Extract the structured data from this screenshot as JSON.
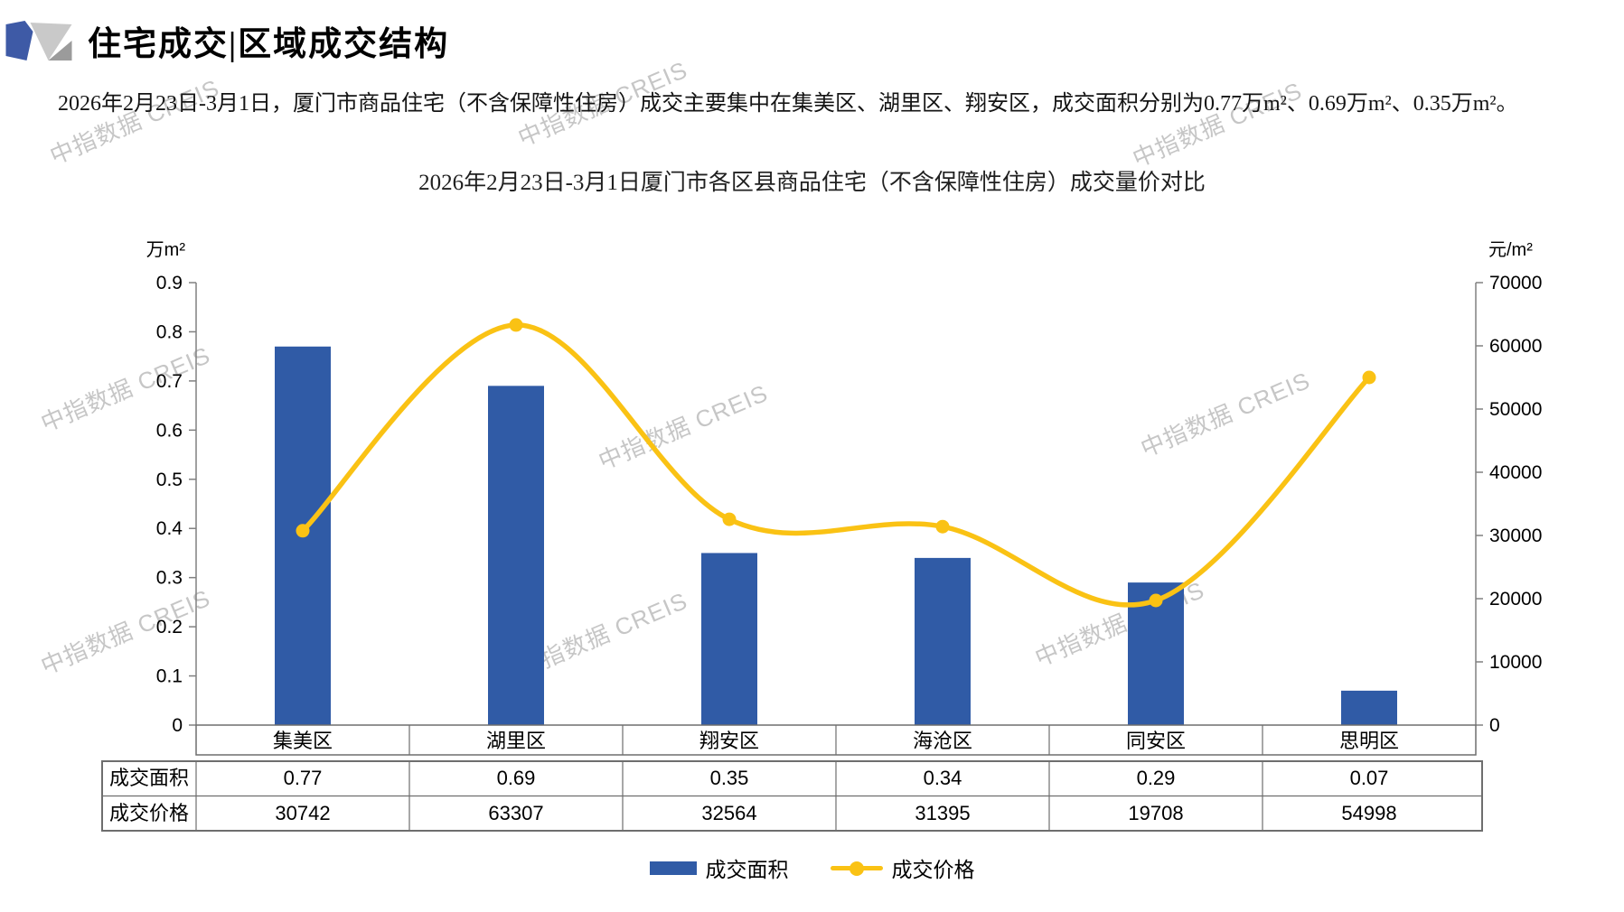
{
  "header": {
    "title": "住宅成交|区域成交结构"
  },
  "summary": "2026年2月23日-3月1日，厦门市商品住宅（不含保障性住房）成交主要集中在集美区、湖里区、翔安区，成交面积分别为0.77万m²、0.69万m²、0.35万m²。",
  "watermark": {
    "text": "中指数据 CREIS"
  },
  "chart_data": {
    "type": "bar+line combo",
    "title": "2026年2月23日-3月1日厦门市各区县商品住宅（不含保障性住房）成交量价对比",
    "categories": [
      "集美区",
      "湖里区",
      "翔安区",
      "海沧区",
      "同安区",
      "思明区"
    ],
    "series": [
      {
        "name": "成交面积",
        "type": "bar",
        "axis": "left",
        "unit": "万m²",
        "color": "#305BA6",
        "values": [
          0.77,
          0.69,
          0.35,
          0.34,
          0.29,
          0.07
        ]
      },
      {
        "name": "成交价格",
        "type": "line",
        "axis": "right",
        "unit": "元/m²",
        "color": "#FAC214",
        "values": [
          30742,
          63307,
          32564,
          31395,
          19708,
          54998
        ]
      }
    ],
    "left_axis": {
      "unit": "万m²",
      "min": 0,
      "max": 0.9,
      "step": 0.1,
      "ticks": [
        "0",
        "0.1",
        "0.2",
        "0.3",
        "0.4",
        "0.5",
        "0.6",
        "0.7",
        "0.8",
        "0.9"
      ]
    },
    "right_axis": {
      "unit": "元/m²",
      "min": 0,
      "max": 70000,
      "step": 10000,
      "ticks": [
        "0",
        "10000",
        "20000",
        "30000",
        "40000",
        "50000",
        "60000",
        "70000"
      ]
    },
    "legend": [
      "成交面积",
      "成交价格"
    ],
    "legend_position": "bottom",
    "grid": false
  }
}
